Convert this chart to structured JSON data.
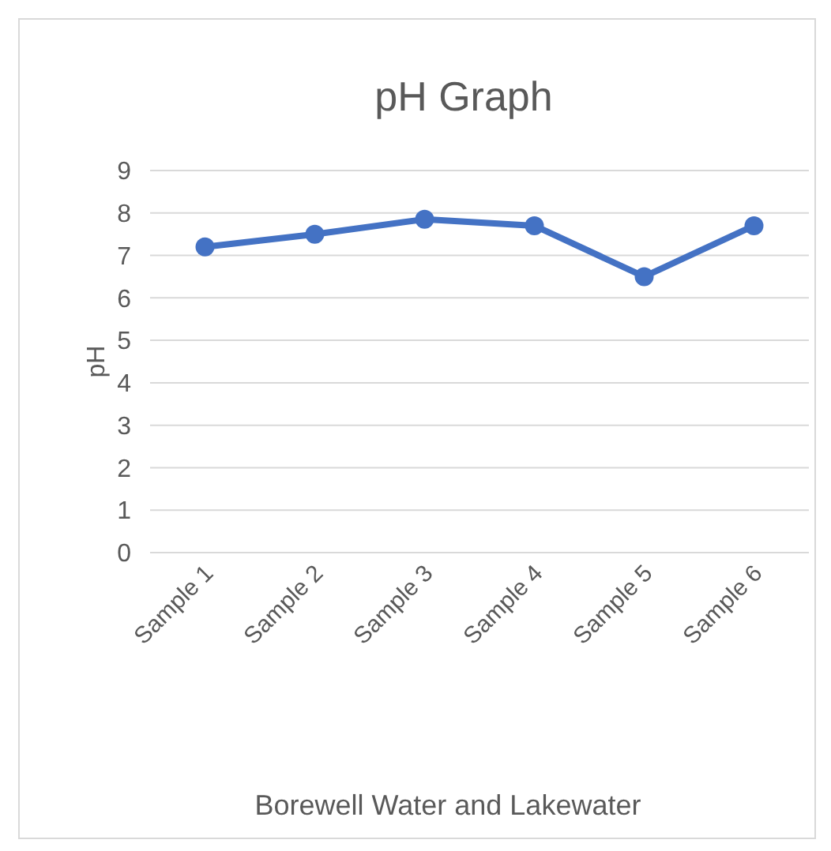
{
  "chart_data": {
    "type": "line",
    "title": "pH Graph",
    "xlabel": "Borewell Water and Lakewater",
    "ylabel": "pH",
    "categories": [
      "Sample 1",
      "Sample 2",
      "Sample 3",
      "Sample 4",
      "Sample 5",
      "Sample 6"
    ],
    "series": [
      {
        "color": "#4472c4",
        "values": [
          7.2,
          7.5,
          7.85,
          7.7,
          6.5,
          7.7
        ]
      }
    ],
    "ylim": [
      0,
      9
    ],
    "yticks": [
      0,
      1,
      2,
      3,
      4,
      5,
      6,
      7,
      8,
      9
    ],
    "grid": "y",
    "marker": "circle",
    "line_style": "solid"
  }
}
